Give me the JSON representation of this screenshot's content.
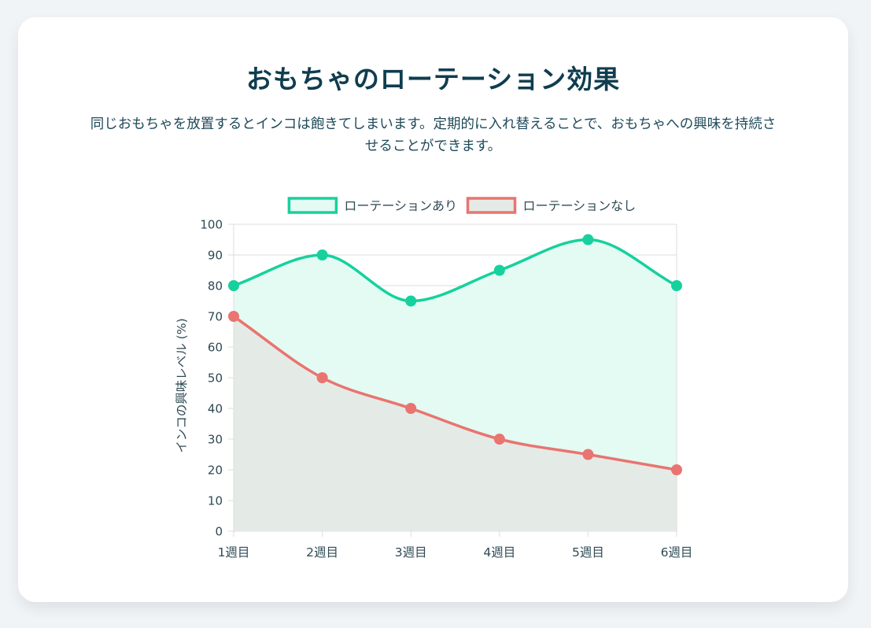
{
  "title": "おもちゃのローテーション効果",
  "description": "同じおもちゃを放置するとインコは飽きてしまいます。定期的に入れ替えることで、おもちゃへの興味を持続させることができます。",
  "chart_data": {
    "type": "line",
    "categories": [
      "1週目",
      "2週目",
      "3週目",
      "4週目",
      "5週目",
      "6週目"
    ],
    "series": [
      {
        "name": "ローテーションあり",
        "values": [
          80,
          90,
          75,
          85,
          95,
          80
        ],
        "color": "#16d19d",
        "fill": "#e3fbf3"
      },
      {
        "name": "ローテーションなし",
        "values": [
          70,
          50,
          40,
          30,
          25,
          20
        ],
        "color": "#ea7470",
        "fill": "#e4ebe6"
      }
    ],
    "ylabel": "インコの興味レベル (%)",
    "xlabel": "",
    "ylim": [
      0,
      100
    ],
    "yticks": [
      0,
      10,
      20,
      30,
      40,
      50,
      60,
      70,
      80,
      90,
      100
    ],
    "grid": true,
    "legend_position": "top"
  }
}
